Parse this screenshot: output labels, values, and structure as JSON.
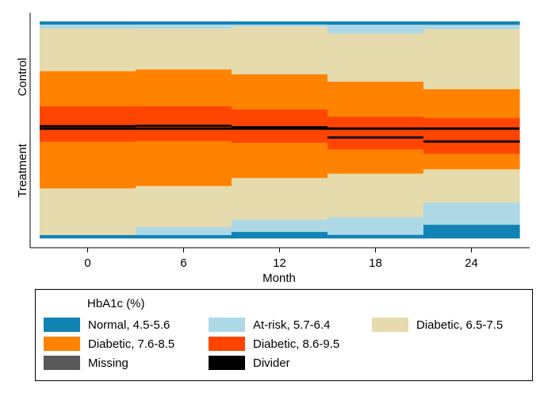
{
  "chart_data": {
    "type": "heatmap",
    "xlabel": "Month",
    "x_ticks": [
      0,
      6,
      12,
      18,
      24
    ],
    "group_labels": [
      "Control",
      "Treatment"
    ],
    "categories": {
      "normal": "Normal, 4.5-5.6",
      "at_risk": "At-risk, 5.7-6.4",
      "diabetic_low": "Diabetic, 6.5-7.5",
      "diabetic_mid": "Diabetic, 7.6-8.5",
      "diabetic_high": "Diabetic, 8.6-9.5",
      "missing": "Missing",
      "divider": "Divider"
    },
    "colors": {
      "normal": "#1182b4",
      "at_risk": "#add8e6",
      "diabetic_low": "#e6dbac",
      "diabetic_mid": "#ff8200",
      "diabetic_high": "#ff4500",
      "missing": "#595959",
      "divider": "#000000"
    },
    "columns": [
      {
        "month": 0,
        "stack": [
          [
            "normal",
            0.015
          ],
          [
            "at_risk",
            0.02
          ],
          [
            "diabetic_low",
            0.205
          ],
          [
            "diabetic_mid",
            0.17
          ],
          [
            "diabetic_high",
            0.09
          ],
          [
            "divider",
            0.01
          ],
          [
            "diabetic_high",
            0.07
          ],
          [
            "diabetic_mid",
            0.225
          ],
          [
            "diabetic_low",
            0.225
          ],
          [
            "normal",
            0.015
          ]
        ]
      },
      {
        "month": 6,
        "stack": [
          [
            "normal",
            0.015
          ],
          [
            "at_risk",
            0.02
          ],
          [
            "diabetic_low",
            0.2
          ],
          [
            "diabetic_mid",
            0.18
          ],
          [
            "diabetic_high",
            0.09
          ],
          [
            "divider",
            0.01
          ],
          [
            "diabetic_high",
            0.07
          ],
          [
            "diabetic_mid",
            0.22
          ],
          [
            "diabetic_low",
            0.2
          ],
          [
            "at_risk",
            0.04
          ],
          [
            "normal",
            0.015
          ]
        ]
      },
      {
        "month": 12,
        "stack": [
          [
            "normal",
            0.015
          ],
          [
            "at_risk",
            0.01
          ],
          [
            "diabetic_low",
            0.23
          ],
          [
            "diabetic_mid",
            0.17
          ],
          [
            "diabetic_high",
            0.08
          ],
          [
            "divider",
            0.01
          ],
          [
            "diabetic_high",
            0.07
          ],
          [
            "diabetic_mid",
            0.17
          ],
          [
            "diabetic_low",
            0.2
          ],
          [
            "at_risk",
            0.06
          ],
          [
            "normal",
            0.03
          ]
        ]
      },
      {
        "month": 18,
        "stack": [
          [
            "normal",
            0.015
          ],
          [
            "at_risk",
            0.04
          ],
          [
            "diabetic_low",
            0.22
          ],
          [
            "diabetic_mid",
            0.16
          ],
          [
            "diabetic_high",
            0.09
          ],
          [
            "divider",
            0.01
          ],
          [
            "diabetic_high",
            0.05
          ],
          [
            "diabetic_mid",
            0.11
          ],
          [
            "diabetic_low",
            0.2
          ],
          [
            "at_risk",
            0.08
          ],
          [
            "normal",
            0.015
          ]
        ]
      },
      {
        "month": 24,
        "stack": [
          [
            "normal",
            0.015
          ],
          [
            "at_risk",
            0.02
          ],
          [
            "diabetic_low",
            0.27
          ],
          [
            "diabetic_mid",
            0.13
          ],
          [
            "diabetic_high",
            0.1
          ],
          [
            "divider",
            0.01
          ],
          [
            "diabetic_high",
            0.05
          ],
          [
            "diabetic_mid",
            0.07
          ],
          [
            "diabetic_low",
            0.15
          ],
          [
            "at_risk",
            0.1
          ],
          [
            "normal",
            0.06
          ]
        ]
      }
    ]
  },
  "legend": {
    "title": "HbA1c (%)",
    "items": [
      {
        "key": "normal",
        "label": "Normal, 4.5-5.6",
        "color": "#1182b4"
      },
      {
        "key": "at_risk",
        "label": "At-risk, 5.7-6.4",
        "color": "#add8e6"
      },
      {
        "key": "diabetic_low",
        "label": "Diabetic, 6.5-7.5",
        "color": "#e6dbac"
      },
      {
        "key": "diabetic_mid",
        "label": "Diabetic, 7.6-8.5",
        "color": "#ff8200"
      },
      {
        "key": "diabetic_high",
        "label": "Diabetic, 8.6-9.5",
        "color": "#ff4500"
      },
      {
        "key": "missing",
        "label": "Missing",
        "color": "#595959"
      },
      {
        "key": "divider",
        "label": "Divider",
        "color": "#000000"
      }
    ]
  }
}
